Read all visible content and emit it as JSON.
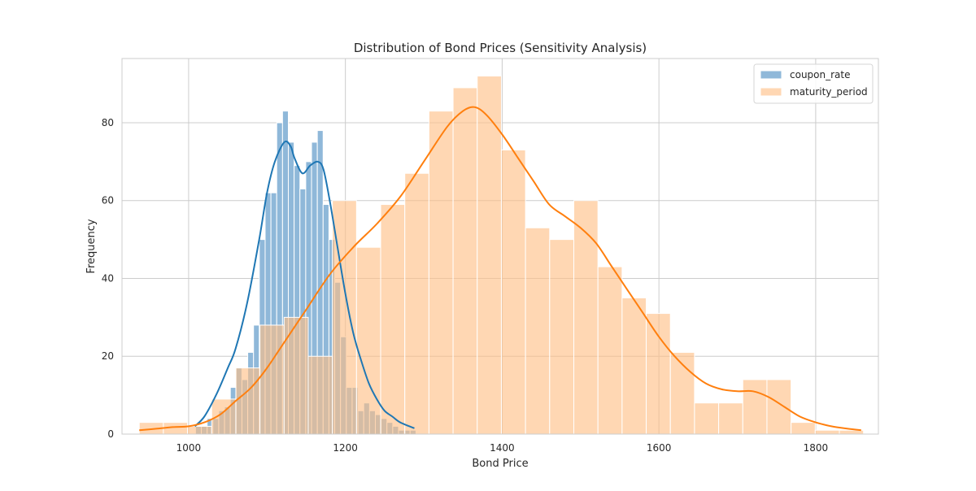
{
  "chart_data": {
    "type": "histogram",
    "title": "Distribution of Bond Prices (Sensitivity Analysis)",
    "xlabel": "Bond Price",
    "ylabel": "Frequency",
    "xlim": [
      915,
      1880
    ],
    "ylim": [
      0,
      96.5
    ],
    "xticks": [
      1000,
      1200,
      1400,
      1600,
      1800
    ],
    "yticks": [
      0,
      20,
      40,
      60,
      80
    ],
    "grid": true,
    "legend_position": "top-right",
    "series": [
      {
        "name": "coupon_rate",
        "color": "#1f77b4",
        "bar_color": "#8fb8d9",
        "bin_start": 1008.8,
        "bin_width": 7.4,
        "counts": [
          2,
          2,
          4,
          4,
          6,
          7,
          12,
          17,
          14,
          21,
          28,
          50,
          62,
          62,
          80,
          83,
          75,
          69,
          63,
          70,
          75,
          78,
          59,
          50,
          39,
          25,
          12,
          12,
          6,
          8,
          6,
          5,
          4,
          3,
          2,
          1,
          1,
          1
        ],
        "kde": [
          [
            1008,
            2
          ],
          [
            1020,
            4.5
          ],
          [
            1035,
            10
          ],
          [
            1050,
            17
          ],
          [
            1060,
            22
          ],
          [
            1075,
            34
          ],
          [
            1090,
            50
          ],
          [
            1100,
            62
          ],
          [
            1110,
            70
          ],
          [
            1122,
            75
          ],
          [
            1130,
            74
          ],
          [
            1135,
            71
          ],
          [
            1145,
            67
          ],
          [
            1155,
            69
          ],
          [
            1165,
            70
          ],
          [
            1172,
            68
          ],
          [
            1180,
            60
          ],
          [
            1190,
            48
          ],
          [
            1200,
            36
          ],
          [
            1210,
            26
          ],
          [
            1220,
            19
          ],
          [
            1230,
            13
          ],
          [
            1240,
            9
          ],
          [
            1250,
            6
          ],
          [
            1260,
            4.5
          ],
          [
            1270,
            3
          ],
          [
            1288,
            1.5
          ]
        ]
      },
      {
        "name": "maturity_period",
        "color": "#ff7f0e",
        "bar_color": "#ffbe85",
        "bin_start": 937,
        "bin_width": 30.8,
        "counts": [
          3,
          3,
          2,
          9,
          17,
          28,
          30,
          20,
          60,
          48,
          59,
          67,
          83,
          89,
          92,
          73,
          53,
          50,
          60,
          43,
          35,
          31,
          21,
          8,
          8,
          14,
          14,
          3,
          1,
          1
        ],
        "kde": [
          [
            937,
            1
          ],
          [
            960,
            1.4
          ],
          [
            980,
            1.8
          ],
          [
            1000,
            2
          ],
          [
            1020,
            3
          ],
          [
            1040,
            5
          ],
          [
            1060,
            8.5
          ],
          [
            1080,
            12
          ],
          [
            1100,
            17
          ],
          [
            1120,
            23
          ],
          [
            1150,
            32
          ],
          [
            1180,
            41
          ],
          [
            1210,
            48
          ],
          [
            1240,
            54
          ],
          [
            1270,
            61
          ],
          [
            1300,
            70
          ],
          [
            1330,
            79
          ],
          [
            1350,
            83
          ],
          [
            1365,
            84
          ],
          [
            1380,
            82
          ],
          [
            1400,
            77
          ],
          [
            1420,
            71
          ],
          [
            1440,
            65
          ],
          [
            1460,
            59
          ],
          [
            1480,
            56
          ],
          [
            1500,
            53
          ],
          [
            1520,
            49
          ],
          [
            1540,
            43
          ],
          [
            1560,
            37
          ],
          [
            1580,
            31
          ],
          [
            1600,
            25
          ],
          [
            1620,
            20
          ],
          [
            1640,
            16
          ],
          [
            1660,
            13
          ],
          [
            1680,
            11.5
          ],
          [
            1700,
            11
          ],
          [
            1720,
            11
          ],
          [
            1740,
            9.5
          ],
          [
            1760,
            7
          ],
          [
            1780,
            4.5
          ],
          [
            1800,
            3
          ],
          [
            1820,
            2
          ],
          [
            1840,
            1.4
          ],
          [
            1858,
            1
          ]
        ]
      }
    ]
  }
}
